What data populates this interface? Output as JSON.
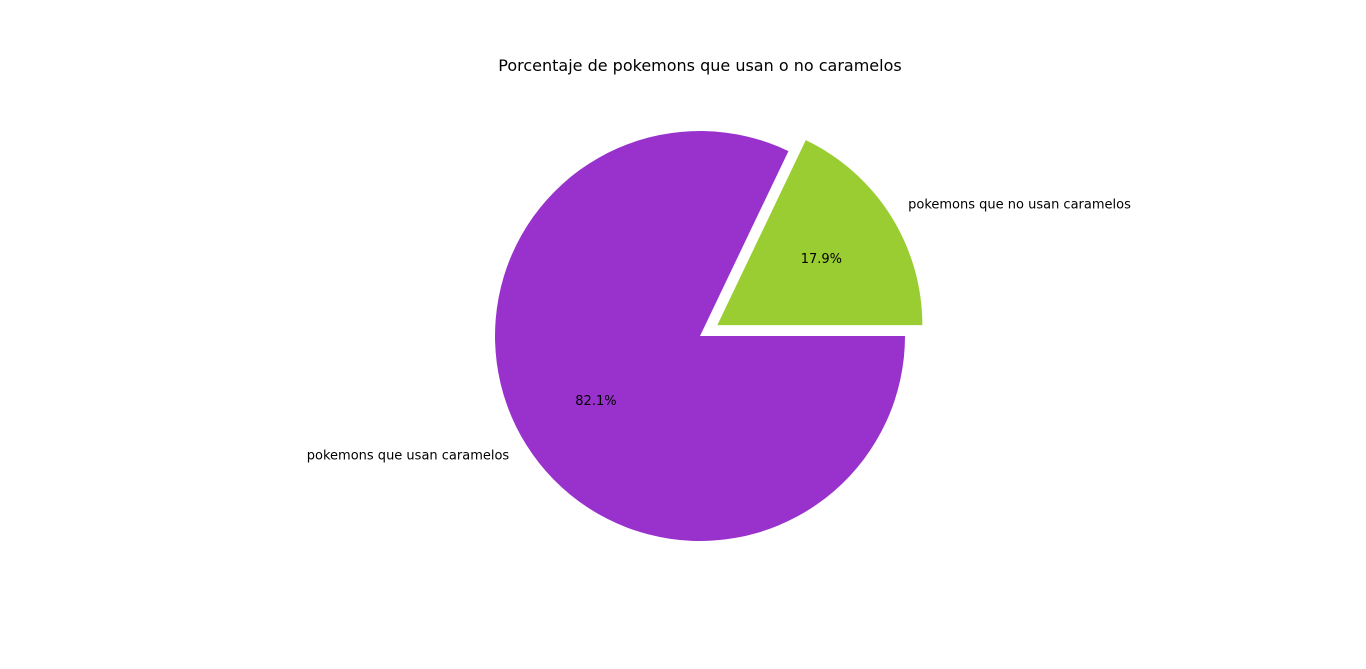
{
  "chart_data": {
    "type": "pie",
    "title": "Porcentaje de pokemons que usan o no caramelos",
    "start_angle_deg": 0,
    "direction": "counterclockwise",
    "slices": [
      {
        "label": "pokemons que no usan caramelos",
        "value": 17.9,
        "pct_label": "17.9%",
        "color": "#9acd32",
        "exploded": true
      },
      {
        "label": "pokemons que usan caramelos",
        "value": 82.1,
        "pct_label": "82.1%",
        "color": "#9932cc",
        "exploded": false
      }
    ],
    "legend": "none"
  }
}
